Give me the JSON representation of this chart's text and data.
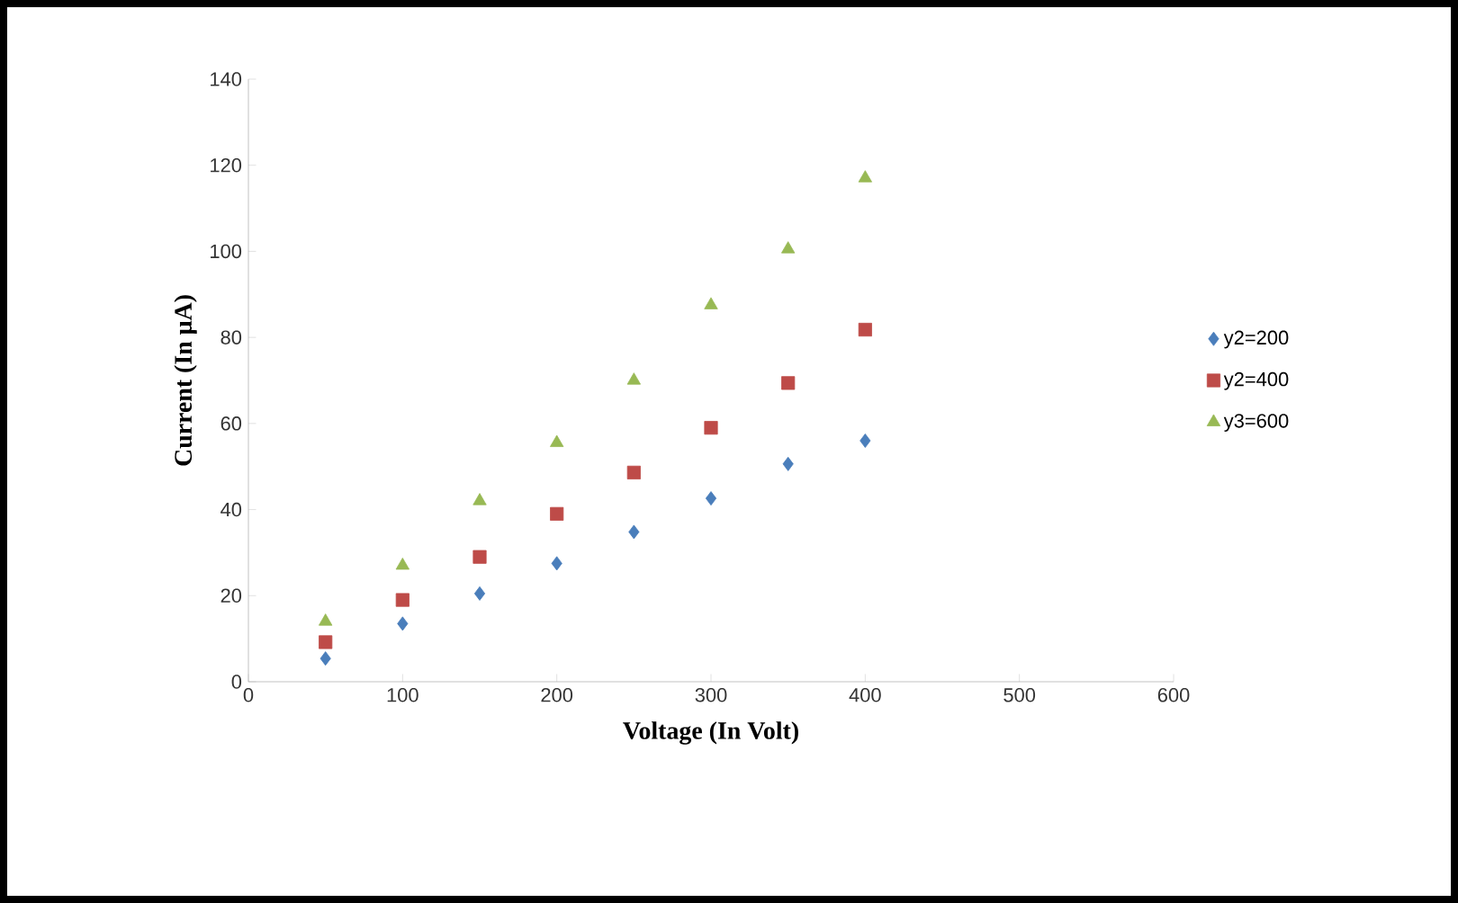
{
  "chart_data": {
    "type": "scatter",
    "xlabel": "Voltage (In Volt)",
    "ylabel": "Current  (In μA)",
    "x": [
      50,
      100,
      150,
      200,
      250,
      300,
      350,
      400
    ],
    "series": [
      {
        "name": "y2=200",
        "color": "#4a7ebb",
        "marker": "diamond",
        "values": [
          5.4,
          13.5,
          20.5,
          27.5,
          34.8,
          42.6,
          50.6,
          56
        ]
      },
      {
        "name": "y2=400",
        "color": "#be4b48",
        "marker": "square",
        "values": [
          9.2,
          19,
          29,
          39,
          48.6,
          59,
          69.4,
          81.8
        ]
      },
      {
        "name": "y3=600",
        "color": "#98b954",
        "marker": "triangle",
        "values": [
          14,
          27,
          42,
          55.5,
          70,
          87.5,
          100.5,
          117
        ]
      }
    ],
    "xlim": [
      0,
      600
    ],
    "xticks": [
      0,
      100,
      200,
      300,
      400,
      500,
      600
    ],
    "ylim": [
      0,
      140
    ],
    "yticks": [
      0,
      20,
      40,
      60,
      80,
      100,
      120,
      140
    ],
    "grid": false,
    "legend": "right"
  }
}
